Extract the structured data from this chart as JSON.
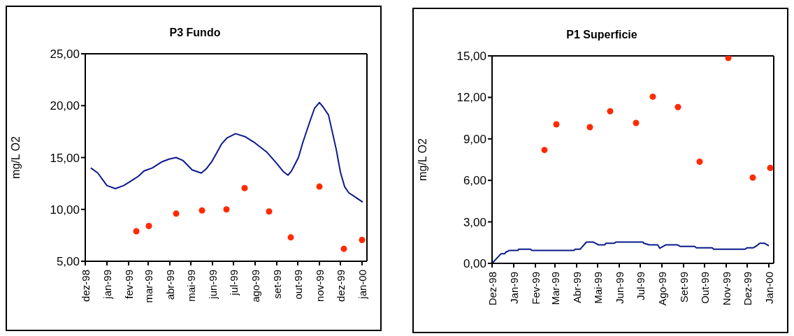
{
  "chart_data": [
    {
      "type": "line",
      "title": "P3 Fundo",
      "ylabel": "mg/L  O2",
      "xlim": [
        "1998-12-01",
        "2000-01-08"
      ],
      "xticks": [
        {
          "value": "1998-12-01",
          "label": "dez-98"
        },
        {
          "value": "1999-01-01",
          "label": "jan-99"
        },
        {
          "value": "1999-02-01",
          "label": "fev-99"
        },
        {
          "value": "1999-03-01",
          "label": "mar-99"
        },
        {
          "value": "1999-04-01",
          "label": "abr-99"
        },
        {
          "value": "1999-05-01",
          "label": "mai-99"
        },
        {
          "value": "1999-06-01",
          "label": "jun-99"
        },
        {
          "value": "1999-07-01",
          "label": "jul-99"
        },
        {
          "value": "1999-08-01",
          "label": "ago-99"
        },
        {
          "value": "1999-09-01",
          "label": "set-99"
        },
        {
          "value": "1999-10-01",
          "label": "out-99"
        },
        {
          "value": "1999-11-01",
          "label": "nov-99"
        },
        {
          "value": "1999-12-01",
          "label": "dez-99"
        },
        {
          "value": "2000-01-01",
          "label": "jan-00"
        }
      ],
      "ylim": [
        5,
        25
      ],
      "yticks": [
        {
          "value": 5,
          "label": "5,00"
        },
        {
          "value": 10,
          "label": "10,00"
        },
        {
          "value": 15,
          "label": "15,00"
        },
        {
          "value": 20,
          "label": "20,00"
        },
        {
          "value": 25,
          "label": "25,00"
        }
      ],
      "grid": false,
      "legend": false,
      "series": [
        {
          "type": "line",
          "marker": "none",
          "color": "#0a1a8c",
          "x": [
            "1998-12-09",
            "1998-12-19",
            "1999-01-01",
            "1999-01-13",
            "1999-01-25",
            "1999-02-06",
            "1999-02-15",
            "1999-02-23",
            "1999-03-07",
            "1999-03-21",
            "1999-03-31",
            "1999-04-10",
            "1999-04-20",
            "1999-05-03",
            "1999-05-16",
            "1999-05-23",
            "1999-05-31",
            "1999-06-14",
            "1999-06-22",
            "1999-07-04",
            "1999-07-18",
            "1999-08-01",
            "1999-08-18",
            "1999-08-31",
            "1999-09-11",
            "1999-09-17",
            "1999-09-22",
            "1999-10-02",
            "1999-10-08",
            "1999-10-18",
            "1999-10-25",
            "1999-11-01",
            "1999-11-06",
            "1999-11-14",
            "1999-11-25",
            "1999-12-01",
            "1999-12-07",
            "1999-12-13",
            "1999-12-22",
            "2000-01-02"
          ],
          "values": [
            14.0,
            13.5,
            12.3,
            12.0,
            12.3,
            12.8,
            13.2,
            13.7,
            14.0,
            14.6,
            14.85,
            15.0,
            14.7,
            13.8,
            13.5,
            13.9,
            14.6,
            16.3,
            16.9,
            17.3,
            17.0,
            16.4,
            15.5,
            14.5,
            13.6,
            13.3,
            13.7,
            15.0,
            16.4,
            18.4,
            19.75,
            20.3,
            19.9,
            19.1,
            15.8,
            13.6,
            12.2,
            11.6,
            11.2,
            10.7
          ]
        },
        {
          "type": "scatter",
          "marker": "circle",
          "color": "#ff2a00",
          "x": [
            "1999-02-12",
            "1999-03-02",
            "1999-04-10",
            "1999-05-17",
            "1999-06-21",
            "1999-07-17",
            "1999-08-21",
            "1999-09-21",
            "1999-11-01",
            "1999-12-06",
            "2000-01-01"
          ],
          "values": [
            7.9,
            8.4,
            9.6,
            9.9,
            10.0,
            12.05,
            9.8,
            7.3,
            12.2,
            6.2,
            7.05
          ]
        }
      ]
    },
    {
      "type": "line",
      "title": "P1 Superficie",
      "ylabel": "mg/L O2",
      "xlim": [
        "1998-12-01",
        "2000-01-08"
      ],
      "xticks": [
        {
          "value": "1998-12-01",
          "label": "Dez-98"
        },
        {
          "value": "1999-01-01",
          "label": "Jan-99"
        },
        {
          "value": "1999-02-01",
          "label": "Fev-99"
        },
        {
          "value": "1999-03-01",
          "label": "Mar-99"
        },
        {
          "value": "1999-04-01",
          "label": "Abr-99"
        },
        {
          "value": "1999-05-01",
          "label": "Mai-99"
        },
        {
          "value": "1999-06-01",
          "label": "Jun-99"
        },
        {
          "value": "1999-07-01",
          "label": "Jul-99"
        },
        {
          "value": "1999-08-01",
          "label": "Ago-99"
        },
        {
          "value": "1999-09-01",
          "label": "Set-99"
        },
        {
          "value": "1999-10-01",
          "label": "Out-99"
        },
        {
          "value": "1999-11-01",
          "label": "Nov-99"
        },
        {
          "value": "1999-12-01",
          "label": "Dez-99"
        },
        {
          "value": "2000-01-01",
          "label": "Jan-00"
        }
      ],
      "ylim": [
        0,
        15
      ],
      "yticks": [
        {
          "value": 0,
          "label": "0,00"
        },
        {
          "value": 3,
          "label": "3,00"
        },
        {
          "value": 6,
          "label": "6,00"
        },
        {
          "value": 9,
          "label": "9,00"
        },
        {
          "value": 12,
          "label": "12,00"
        },
        {
          "value": 15,
          "label": "15,00"
        }
      ],
      "grid": false,
      "legend": false,
      "series": [
        {
          "type": "line",
          "marker": "none",
          "color": "#0a1a8c",
          "x": [
            "1998-12-01",
            "1998-12-14",
            "1998-12-19",
            "1998-12-21",
            "1998-12-26",
            "1999-01-07",
            "1999-01-08",
            "1999-01-25",
            "1999-01-27",
            "1999-03-28",
            "1999-03-30",
            "1999-04-06",
            "1999-04-15",
            "1999-04-25",
            "1999-05-02",
            "1999-05-11",
            "1999-05-13",
            "1999-05-25",
            "1999-05-27",
            "1999-07-05",
            "1999-07-06",
            "1999-07-14",
            "1999-07-26",
            "1999-07-29",
            "1999-08-02",
            "1999-08-07",
            "1999-08-23",
            "1999-08-27",
            "1999-09-17",
            "1999-09-19",
            "1999-10-12",
            "1999-10-14",
            "1999-11-28",
            "1999-12-01",
            "1999-12-10",
            "1999-12-16",
            "1999-12-19",
            "1999-12-26",
            "2000-01-01"
          ],
          "values": [
            0,
            0.7,
            0.7,
            0.82,
            0.93,
            0.93,
            1.02,
            1.02,
            0.93,
            0.93,
            1.02,
            1.02,
            1.54,
            1.54,
            1.34,
            1.34,
            1.45,
            1.45,
            1.54,
            1.54,
            1.45,
            1.34,
            1.34,
            1.09,
            1.2,
            1.34,
            1.34,
            1.23,
            1.23,
            1.13,
            1.13,
            1.02,
            1.02,
            1.13,
            1.13,
            1.32,
            1.45,
            1.45,
            1.27
          ]
        },
        {
          "type": "scatter",
          "marker": "circle",
          "color": "#ff2a00",
          "x": [
            "1999-02-14",
            "1999-03-03",
            "1999-04-20",
            "1999-05-19",
            "1999-06-25",
            "1999-07-19",
            "1999-08-24",
            "1999-09-24",
            "1999-11-04",
            "1999-12-09",
            "2000-01-03"
          ],
          "values": [
            8.2,
            10.05,
            9.85,
            11.0,
            10.15,
            12.05,
            11.3,
            7.35,
            14.85,
            6.2,
            6.9
          ]
        }
      ]
    }
  ]
}
